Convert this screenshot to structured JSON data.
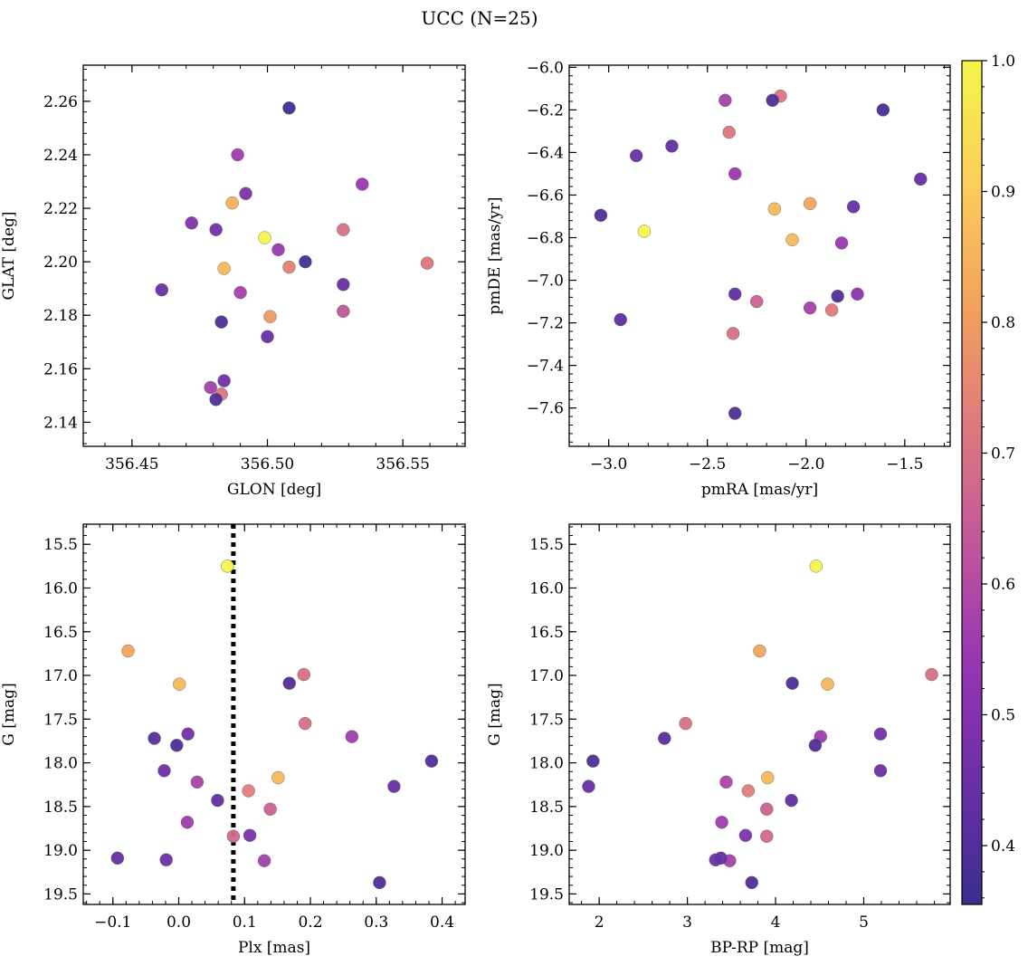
{
  "figure": {
    "suptitle": "UCC (N=25)"
  },
  "colorbar": {
    "min": 0.355,
    "max": 1.0,
    "ticks": [
      0.4,
      0.5,
      0.6,
      0.7,
      0.8,
      0.9,
      1.0
    ],
    "tick_labels": [
      "0.4",
      "0.5",
      "0.6",
      "0.7",
      "0.8",
      "0.9",
      "1.0"
    ],
    "colormap": "plasma (truncated)",
    "stops": [
      "#3a2e8f",
      "#6a2fa5",
      "#9634b3",
      "#c0579a",
      "#df7a7c",
      "#f2a35c",
      "#fbcf5a",
      "#f4f54a"
    ]
  },
  "chart_data": [
    {
      "type": "scatter",
      "xlabel": "GLON [deg]",
      "ylabel": "GLAT [deg]",
      "xlim": [
        356.432,
        356.573
      ],
      "ylim": [
        2.131,
        2.2735
      ],
      "xticks": [
        356.45,
        356.5,
        356.55
      ],
      "xtick_labels": [
        "356.45",
        "356.50",
        "356.55"
      ],
      "yticks": [
        2.14,
        2.16,
        2.18,
        2.2,
        2.22,
        2.24,
        2.26
      ],
      "ytick_labels": [
        "2.14",
        "2.16",
        "2.18",
        "2.20",
        "2.22",
        "2.24",
        "2.26"
      ],
      "points": [
        {
          "x": 356.508,
          "y": 2.2575,
          "c": 0.37
        },
        {
          "x": 356.489,
          "y": 2.24,
          "c": 0.56
        },
        {
          "x": 356.535,
          "y": 2.229,
          "c": 0.55
        },
        {
          "x": 356.492,
          "y": 2.2255,
          "c": 0.48
        },
        {
          "x": 356.487,
          "y": 2.222,
          "c": 0.84
        },
        {
          "x": 356.472,
          "y": 2.2145,
          "c": 0.5
        },
        {
          "x": 356.481,
          "y": 2.212,
          "c": 0.46
        },
        {
          "x": 356.528,
          "y": 2.212,
          "c": 0.7
        },
        {
          "x": 356.499,
          "y": 2.209,
          "c": 1.0
        },
        {
          "x": 356.504,
          "y": 2.2045,
          "c": 0.55
        },
        {
          "x": 356.514,
          "y": 2.2,
          "c": 0.38
        },
        {
          "x": 356.559,
          "y": 2.1995,
          "c": 0.71
        },
        {
          "x": 356.508,
          "y": 2.198,
          "c": 0.74
        },
        {
          "x": 356.484,
          "y": 2.1975,
          "c": 0.86
        },
        {
          "x": 356.461,
          "y": 2.1895,
          "c": 0.44
        },
        {
          "x": 356.528,
          "y": 2.1915,
          "c": 0.44
        },
        {
          "x": 356.49,
          "y": 2.1885,
          "c": 0.57
        },
        {
          "x": 356.528,
          "y": 2.1815,
          "c": 0.63
        },
        {
          "x": 356.501,
          "y": 2.1795,
          "c": 0.79
        },
        {
          "x": 356.483,
          "y": 2.1775,
          "c": 0.4
        },
        {
          "x": 356.5,
          "y": 2.172,
          "c": 0.44
        },
        {
          "x": 356.484,
          "y": 2.1555,
          "c": 0.46
        },
        {
          "x": 356.479,
          "y": 2.153,
          "c": 0.57
        },
        {
          "x": 356.483,
          "y": 2.1505,
          "c": 0.71
        },
        {
          "x": 356.481,
          "y": 2.1485,
          "c": 0.39
        }
      ]
    },
    {
      "type": "scatter",
      "xlabel": "pmRA [mas/yr]",
      "ylabel": "pmDE [mas/yr]",
      "xlim": [
        -3.2,
        -1.27
      ],
      "ylim": [
        -7.78,
        -5.99
      ],
      "xticks": [
        -3.0,
        -2.5,
        -2.0,
        -1.5
      ],
      "xtick_labels": [
        "−3.0",
        "−2.5",
        "−2.0",
        "−1.5"
      ],
      "yticks": [
        -7.6,
        -7.4,
        -7.2,
        -7.0,
        -6.8,
        -6.6,
        -6.4,
        -6.2,
        -6.0
      ],
      "ytick_labels": [
        "−7.6",
        "−7.4",
        "−7.2",
        "−7.0",
        "−6.8",
        "−6.6",
        "−6.4",
        "−6.2",
        "−6.0"
      ],
      "points": [
        {
          "x": -2.13,
          "y": -6.135,
          "c": 0.71
        },
        {
          "x": -2.41,
          "y": -6.155,
          "c": 0.57
        },
        {
          "x": -2.17,
          "y": -6.155,
          "c": 0.4
        },
        {
          "x": -1.61,
          "y": -6.2,
          "c": 0.38
        },
        {
          "x": -2.39,
          "y": -6.305,
          "c": 0.71
        },
        {
          "x": -2.68,
          "y": -6.37,
          "c": 0.43
        },
        {
          "x": -2.86,
          "y": -6.415,
          "c": 0.45
        },
        {
          "x": -2.36,
          "y": -6.5,
          "c": 0.55
        },
        {
          "x": -1.42,
          "y": -6.525,
          "c": 0.44
        },
        {
          "x": -1.98,
          "y": -6.64,
          "c": 0.82
        },
        {
          "x": -1.76,
          "y": -6.655,
          "c": 0.45
        },
        {
          "x": -2.16,
          "y": -6.665,
          "c": 0.86
        },
        {
          "x": -3.04,
          "y": -6.695,
          "c": 0.4
        },
        {
          "x": -2.82,
          "y": -6.77,
          "c": 1.0
        },
        {
          "x": -2.07,
          "y": -6.81,
          "c": 0.86
        },
        {
          "x": -1.82,
          "y": -6.825,
          "c": 0.55
        },
        {
          "x": -2.36,
          "y": -7.065,
          "c": 0.43
        },
        {
          "x": -1.74,
          "y": -7.065,
          "c": 0.52
        },
        {
          "x": -1.84,
          "y": -7.075,
          "c": 0.4
        },
        {
          "x": -2.25,
          "y": -7.1,
          "c": 0.66
        },
        {
          "x": -1.98,
          "y": -7.13,
          "c": 0.57
        },
        {
          "x": -1.87,
          "y": -7.14,
          "c": 0.72
        },
        {
          "x": -2.94,
          "y": -7.185,
          "c": 0.42
        },
        {
          "x": -2.37,
          "y": -7.25,
          "c": 0.7
        },
        {
          "x": -2.36,
          "y": -7.625,
          "c": 0.4
        }
      ]
    },
    {
      "type": "scatter",
      "xlabel": "Plx [mas]",
      "ylabel": "G [mag]",
      "xlim": [
        -0.145,
        0.435
      ],
      "ylim": [
        19.62,
        15.27
      ],
      "y_inverted": true,
      "xticks": [
        -0.1,
        0.0,
        0.1,
        0.2,
        0.3,
        0.4
      ],
      "xtick_labels": [
        "−0.1",
        "0.0",
        "0.1",
        "0.2",
        "0.3",
        "0.4"
      ],
      "yticks": [
        15.5,
        16.0,
        16.5,
        17.0,
        17.5,
        18.0,
        18.5,
        19.0,
        19.5
      ],
      "ytick_labels": [
        "15.5",
        "16.0",
        "16.5",
        "17.0",
        "17.5",
        "18.0",
        "18.5",
        "19.0",
        "19.5"
      ],
      "vline": {
        "x": 0.083,
        "style": "dotted",
        "color": "#000000"
      },
      "points": [
        {
          "x": 0.074,
          "y": 15.75,
          "c": 1.0
        },
        {
          "x": -0.077,
          "y": 16.72,
          "c": 0.82
        },
        {
          "x": 0.19,
          "y": 16.99,
          "c": 0.7
        },
        {
          "x": 0.001,
          "y": 17.1,
          "c": 0.86
        },
        {
          "x": 0.168,
          "y": 17.09,
          "c": 0.4
        },
        {
          "x": 0.192,
          "y": 17.55,
          "c": 0.7
        },
        {
          "x": 0.014,
          "y": 17.67,
          "c": 0.46
        },
        {
          "x": 0.263,
          "y": 17.7,
          "c": 0.56
        },
        {
          "x": -0.037,
          "y": 17.72,
          "c": 0.41
        },
        {
          "x": -0.003,
          "y": 17.8,
          "c": 0.4
        },
        {
          "x": 0.384,
          "y": 17.98,
          "c": 0.4
        },
        {
          "x": -0.022,
          "y": 18.09,
          "c": 0.45
        },
        {
          "x": 0.151,
          "y": 18.17,
          "c": 0.86
        },
        {
          "x": 0.028,
          "y": 18.22,
          "c": 0.58
        },
        {
          "x": 0.327,
          "y": 18.27,
          "c": 0.44
        },
        {
          "x": 0.106,
          "y": 18.32,
          "c": 0.73
        },
        {
          "x": 0.059,
          "y": 18.43,
          "c": 0.43
        },
        {
          "x": 0.139,
          "y": 18.53,
          "c": 0.66
        },
        {
          "x": 0.013,
          "y": 18.68,
          "c": 0.56
        },
        {
          "x": 0.083,
          "y": 18.84,
          "c": 0.68
        },
        {
          "x": 0.108,
          "y": 18.83,
          "c": 0.49
        },
        {
          "x": -0.093,
          "y": 19.09,
          "c": 0.44
        },
        {
          "x": -0.019,
          "y": 19.11,
          "c": 0.45
        },
        {
          "x": 0.13,
          "y": 19.12,
          "c": 0.57
        },
        {
          "x": 0.305,
          "y": 19.37,
          "c": 0.4
        }
      ]
    },
    {
      "type": "scatter",
      "xlabel": "BP-RP [mag]",
      "ylabel": "G [mag]",
      "xlim": [
        1.66,
        5.98
      ],
      "ylim": [
        19.62,
        15.27
      ],
      "y_inverted": true,
      "xticks": [
        2,
        3,
        4,
        5
      ],
      "xtick_labels": [
        "2",
        "3",
        "4",
        "5"
      ],
      "yticks": [
        15.5,
        16.0,
        16.5,
        17.0,
        17.5,
        18.0,
        18.5,
        19.0,
        19.5
      ],
      "ytick_labels": [
        "15.5",
        "16.0",
        "16.5",
        "17.0",
        "17.5",
        "18.0",
        "18.5",
        "19.0",
        "19.5"
      ],
      "points": [
        {
          "x": 4.46,
          "y": 15.75,
          "c": 1.0
        },
        {
          "x": 3.82,
          "y": 16.72,
          "c": 0.82
        },
        {
          "x": 5.77,
          "y": 16.99,
          "c": 0.7
        },
        {
          "x": 4.59,
          "y": 17.1,
          "c": 0.86
        },
        {
          "x": 4.19,
          "y": 17.09,
          "c": 0.4
        },
        {
          "x": 2.98,
          "y": 17.55,
          "c": 0.7
        },
        {
          "x": 5.19,
          "y": 17.67,
          "c": 0.46
        },
        {
          "x": 4.51,
          "y": 17.7,
          "c": 0.56
        },
        {
          "x": 2.74,
          "y": 17.72,
          "c": 0.41
        },
        {
          "x": 4.45,
          "y": 17.8,
          "c": 0.4
        },
        {
          "x": 1.93,
          "y": 17.98,
          "c": 0.4
        },
        {
          "x": 5.19,
          "y": 18.09,
          "c": 0.45
        },
        {
          "x": 3.91,
          "y": 18.17,
          "c": 0.86
        },
        {
          "x": 3.44,
          "y": 18.22,
          "c": 0.58
        },
        {
          "x": 1.88,
          "y": 18.27,
          "c": 0.44
        },
        {
          "x": 3.69,
          "y": 18.32,
          "c": 0.73
        },
        {
          "x": 4.18,
          "y": 18.43,
          "c": 0.43
        },
        {
          "x": 3.9,
          "y": 18.53,
          "c": 0.66
        },
        {
          "x": 3.39,
          "y": 18.68,
          "c": 0.56
        },
        {
          "x": 3.9,
          "y": 18.84,
          "c": 0.68
        },
        {
          "x": 3.66,
          "y": 18.83,
          "c": 0.49
        },
        {
          "x": 3.38,
          "y": 19.09,
          "c": 0.44
        },
        {
          "x": 3.32,
          "y": 19.11,
          "c": 0.45
        },
        {
          "x": 3.48,
          "y": 19.12,
          "c": 0.57
        },
        {
          "x": 3.73,
          "y": 19.37,
          "c": 0.4
        }
      ]
    }
  ]
}
